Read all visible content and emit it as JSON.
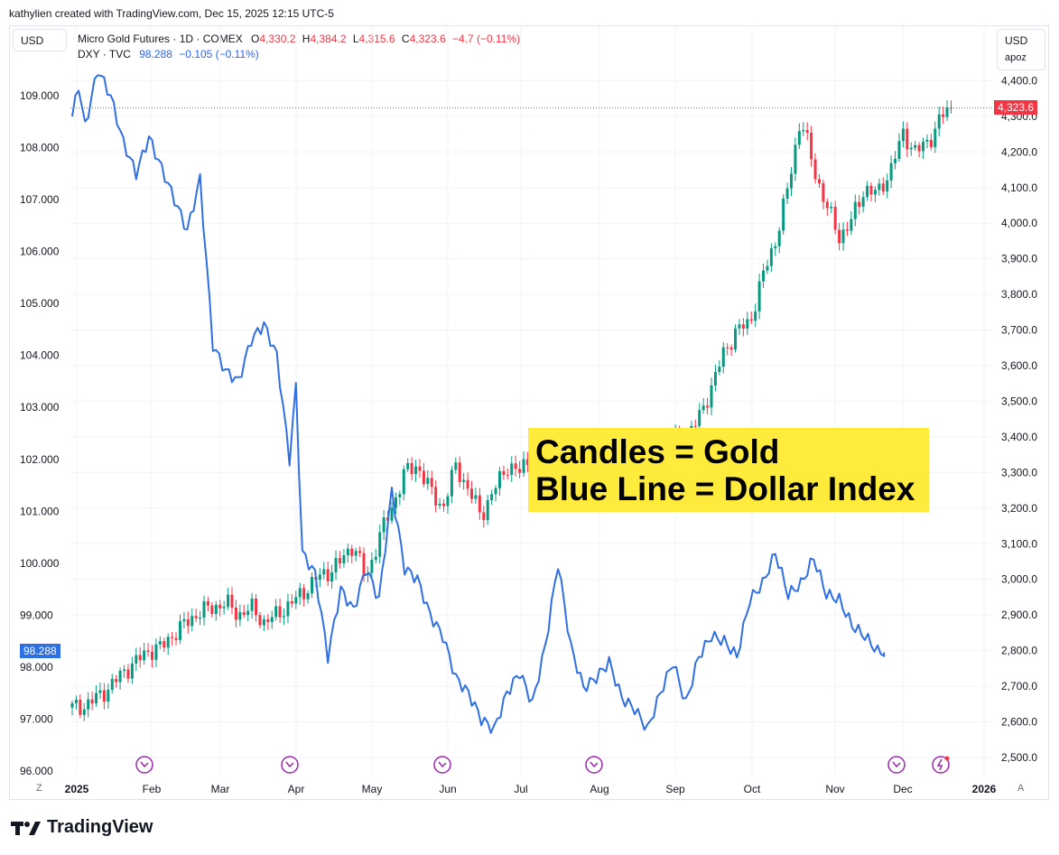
{
  "credit": "kathylien created with TradingView.com, Dec 15, 2025 12:15 UTC-5",
  "left_currency": "USD",
  "right_currency": "USD",
  "right_sub": "apoz",
  "legend_gold": {
    "name": "Micro Gold Futures · 1D · COMEX",
    "o_label": "O",
    "o_value": "4,330.2",
    "h_label": "H",
    "h_value": "4,384.2",
    "l_label": "L",
    "l_value": "4,315.6",
    "c_label": "C",
    "c_value": "4,323.6",
    "change": "−4.7 (−0.11%)"
  },
  "legend_dxy": {
    "name": "DXY · TVC",
    "value": "98.288",
    "change": "−0.105 (−0.11%)"
  },
  "annotation": {
    "line1": "Candles = Gold",
    "line2": "Blue Line = Dollar Index"
  },
  "dxy_last_tag": "98.288",
  "gold_last_tag": "4,323.6",
  "corner_left": "Z",
  "corner_right": "A",
  "brand": "TradingView",
  "colors": {
    "up": "#089981",
    "down": "#f23645",
    "dxy": "#2f6fe4",
    "events": "#9c27b0",
    "highlight": "#ffeb3b"
  },
  "chart_data": {
    "type": "candlestick+line",
    "x_ticks": [
      "2025",
      "Feb",
      "Mar",
      "Apr",
      "May",
      "Jun",
      "Jul",
      "Aug",
      "Sep",
      "Oct",
      "Nov",
      "Dec",
      "2026"
    ],
    "left_axis": {
      "series": "DXY",
      "ticks": [
        "96.000",
        "97.000",
        "98.000",
        "99.000",
        "100.000",
        "101.000",
        "102.000",
        "103.000",
        "104.000",
        "105.000",
        "106.000",
        "107.000",
        "108.000",
        "109.000"
      ],
      "range": [
        96,
        109
      ]
    },
    "right_axis": {
      "series": "Micro Gold Futures",
      "ticks": [
        "2,500.0",
        "2,600.0",
        "2,700.0",
        "2,800.0",
        "2,900.0",
        "3,000.0",
        "3,100.0",
        "3,200.0",
        "3,300.0",
        "3,400.0",
        "3,500.0",
        "3,600.0",
        "3,700.0",
        "3,800.0",
        "3,900.0",
        "4,000.0",
        "4,100.0",
        "4,200.0",
        "4,300.0",
        "4,400.0"
      ],
      "range": [
        2500,
        4400
      ]
    },
    "gold_close_path": [
      [
        0,
        2640
      ],
      [
        4,
        2645
      ],
      [
        8,
        2670
      ],
      [
        12,
        2700
      ],
      [
        16,
        2740
      ],
      [
        20,
        2770
      ],
      [
        24,
        2800
      ],
      [
        28,
        2810
      ],
      [
        32,
        2850
      ],
      [
        36,
        2880
      ],
      [
        40,
        2910
      ],
      [
        44,
        2920
      ],
      [
        48,
        2935
      ],
      [
        52,
        2900
      ],
      [
        56,
        2920
      ],
      [
        60,
        2880
      ],
      [
        64,
        2900
      ],
      [
        68,
        2930
      ],
      [
        72,
        2960
      ],
      [
        76,
        3000
      ],
      [
        80,
        3020
      ],
      [
        84,
        3050
      ],
      [
        88,
        3100
      ],
      [
        92,
        3000
      ],
      [
        96,
        3120
      ],
      [
        100,
        3200
      ],
      [
        104,
        3300
      ],
      [
        108,
        3320
      ],
      [
        112,
        3250
      ],
      [
        116,
        3200
      ],
      [
        120,
        3320
      ],
      [
        124,
        3250
      ],
      [
        128,
        3180
      ],
      [
        132,
        3250
      ],
      [
        136,
        3320
      ],
      [
        140,
        3300
      ],
      [
        144,
        3360
      ],
      [
        148,
        3380
      ],
      [
        152,
        3340
      ],
      [
        156,
        3300
      ],
      [
        160,
        3350
      ],
      [
        164,
        3390
      ],
      [
        168,
        3330
      ],
      [
        172,
        3280
      ],
      [
        176,
        3300
      ],
      [
        180,
        3320
      ],
      [
        184,
        3360
      ],
      [
        188,
        3400
      ],
      [
        192,
        3400
      ],
      [
        196,
        3450
      ],
      [
        200,
        3540
      ],
      [
        204,
        3640
      ],
      [
        208,
        3700
      ],
      [
        212,
        3720
      ],
      [
        216,
        3850
      ],
      [
        220,
        3950
      ],
      [
        224,
        4100
      ],
      [
        228,
        4300
      ],
      [
        232,
        4150
      ],
      [
        236,
        4050
      ],
      [
        240,
        3960
      ],
      [
        244,
        4010
      ],
      [
        248,
        4100
      ],
      [
        252,
        4080
      ],
      [
        256,
        4150
      ],
      [
        260,
        4250
      ],
      [
        264,
        4200
      ],
      [
        268,
        4230
      ],
      [
        272,
        4300
      ],
      [
        275,
        4323.6
      ]
    ],
    "dxy_path": [
      [
        0,
        108.6
      ],
      [
        2,
        109.2
      ],
      [
        4,
        108.4
      ],
      [
        8,
        109.5
      ],
      [
        12,
        109.0
      ],
      [
        16,
        108.1
      ],
      [
        20,
        107.5
      ],
      [
        24,
        108.2
      ],
      [
        28,
        107.6
      ],
      [
        32,
        107.0
      ],
      [
        36,
        106.4
      ],
      [
        40,
        107.4
      ],
      [
        44,
        104.2
      ],
      [
        48,
        103.7
      ],
      [
        52,
        103.5
      ],
      [
        56,
        104.3
      ],
      [
        60,
        104.6
      ],
      [
        64,
        104.0
      ],
      [
        68,
        102.0
      ],
      [
        70,
        103.4
      ],
      [
        72,
        100.2
      ],
      [
        76,
        99.8
      ],
      [
        80,
        98.2
      ],
      [
        84,
        99.5
      ],
      [
        88,
        99.1
      ],
      [
        92,
        99.9
      ],
      [
        96,
        99.3
      ],
      [
        100,
        101.4
      ],
      [
        104,
        99.9
      ],
      [
        108,
        99.7
      ],
      [
        112,
        99.0
      ],
      [
        116,
        98.6
      ],
      [
        120,
        97.8
      ],
      [
        124,
        97.5
      ],
      [
        128,
        97.0
      ],
      [
        132,
        96.8
      ],
      [
        136,
        97.5
      ],
      [
        140,
        97.9
      ],
      [
        144,
        97.3
      ],
      [
        148,
        98.4
      ],
      [
        152,
        100.0
      ],
      [
        156,
        98.4
      ],
      [
        160,
        97.6
      ],
      [
        164,
        97.8
      ],
      [
        168,
        98.1
      ],
      [
        172,
        97.4
      ],
      [
        176,
        97.2
      ],
      [
        180,
        96.8
      ],
      [
        184,
        97.5
      ],
      [
        188,
        98.1
      ],
      [
        192,
        97.3
      ],
      [
        196,
        98.2
      ],
      [
        200,
        98.6
      ],
      [
        204,
        98.5
      ],
      [
        208,
        98.2
      ],
      [
        212,
        99.3
      ],
      [
        216,
        99.6
      ],
      [
        220,
        100.2
      ],
      [
        224,
        99.4
      ],
      [
        228,
        99.6
      ],
      [
        232,
        100.1
      ],
      [
        236,
        99.4
      ],
      [
        240,
        99.3
      ],
      [
        244,
        98.8
      ],
      [
        248,
        98.6
      ],
      [
        252,
        98.3
      ],
      [
        254,
        98.288
      ]
    ]
  },
  "event_markers": [
    "dividend",
    "dividend",
    "dividend",
    "dividend",
    "dividend",
    "split"
  ]
}
